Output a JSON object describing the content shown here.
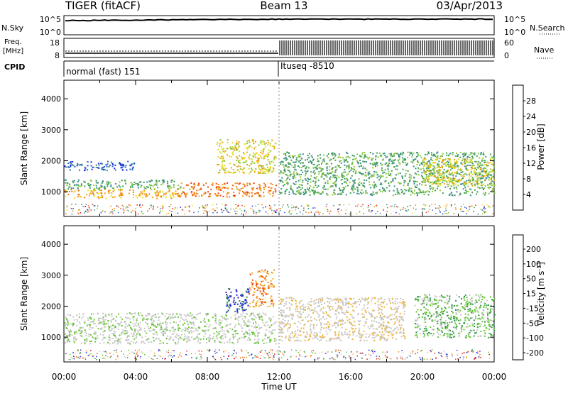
{
  "header": {
    "title": "TIGER (fitACF)",
    "beam": "Beam 13",
    "date": "03/Apr/2013"
  },
  "top_strips": {
    "nsky": {
      "label": "N.Sky",
      "ticks": [
        "10^5",
        "10^0"
      ]
    },
    "nsearch": {
      "label": "N.Search",
      "ticks": [
        "10^5",
        "10^0"
      ]
    },
    "freq": {
      "label_line1": "Freq.",
      "label_line2": "[MHz]",
      "ticks": [
        "18",
        "8"
      ]
    },
    "nave": {
      "label": "Nave",
      "ticks": [
        "60",
        "0"
      ]
    },
    "cpid": {
      "label": "CPID",
      "segments": [
        {
          "text": "normal (fast) 151",
          "start_hour": 0
        },
        {
          "text": "Ituseq -8510",
          "start_hour": 12
        }
      ]
    }
  },
  "colors": {
    "power": [
      "#1428e6",
      "#2060c0",
      "#3c8c8c",
      "#3ca050",
      "#8cc83c",
      "#e6dc1e",
      "#f0a014",
      "#f07814",
      "#f03c14",
      "#e61414"
    ],
    "velocity": [
      "#1e1ee6",
      "#3232c8",
      "#329650",
      "#64c832",
      "#c8c8c8",
      "#c8c8c8",
      "#f0b432",
      "#f08c1e",
      "#f05014",
      "#e61414"
    ]
  },
  "chart_data": [
    {
      "type": "heatmap",
      "title": "",
      "xlabel": "",
      "ylabel": "Slant Range [km]",
      "xlim": [
        0,
        24
      ],
      "ylim": [
        200,
        4600
      ],
      "ytick_labels": [
        "1000",
        "2000",
        "3000",
        "4000"
      ],
      "colorbar": {
        "label": "Power [dB]",
        "range": [
          0,
          32
        ],
        "tick_labels": [
          "4",
          "8",
          "12",
          "16",
          "20",
          "24",
          "28"
        ]
      },
      "echo_regions": [
        {
          "hours": [
            0,
            6.5
          ],
          "range_km": [
            800,
            1100
          ],
          "level": 22
        },
        {
          "hours": [
            0,
            6.5
          ],
          "range_km": [
            1100,
            1400
          ],
          "level": 12
        },
        {
          "hours": [
            0,
            4
          ],
          "range_km": [
            1700,
            2000
          ],
          "level": 6
        },
        {
          "hours": [
            6.5,
            11.8
          ],
          "range_km": [
            850,
            1300
          ],
          "level": 24
        },
        {
          "hours": [
            8.5,
            11.8
          ],
          "range_km": [
            1600,
            2700
          ],
          "level": 18
        },
        {
          "hours": [
            12,
            24
          ],
          "range_km": [
            900,
            2300
          ],
          "level": 12
        },
        {
          "hours": [
            20,
            24
          ],
          "range_km": [
            1200,
            2100
          ],
          "level": 16
        }
      ]
    },
    {
      "type": "heatmap",
      "title": "",
      "xlabel": "Time UT",
      "ylabel": "Slant Range [km]",
      "xlim": [
        0,
        24
      ],
      "ylim": [
        200,
        4600
      ],
      "xtick_labels": [
        "00:00",
        "04:00",
        "08:00",
        "12:00",
        "16:00",
        "20:00",
        "00:00"
      ],
      "ytick_labels": [
        "1000",
        "2000",
        "3000",
        "4000"
      ],
      "colorbar": {
        "label": "Velocity [m s^-1]",
        "tick_labels": [
          "200",
          "100",
          "50",
          "15",
          "-15",
          "-50",
          "-100",
          "-200"
        ]
      },
      "echo_regions": [
        {
          "hours": [
            0,
            11.8
          ],
          "range_km": [
            800,
            1800
          ],
          "level": -5
        },
        {
          "hours": [
            9,
            10.3
          ],
          "range_km": [
            1800,
            2600
          ],
          "level": 180
        },
        {
          "hours": [
            10.3,
            11.7
          ],
          "range_km": [
            2000,
            3200
          ],
          "level": -180
        },
        {
          "hours": [
            12,
            19
          ],
          "range_km": [
            900,
            2300
          ],
          "level": -40
        },
        {
          "hours": [
            19.5,
            24
          ],
          "range_km": [
            1000,
            2400
          ],
          "level": 20
        }
      ]
    }
  ]
}
